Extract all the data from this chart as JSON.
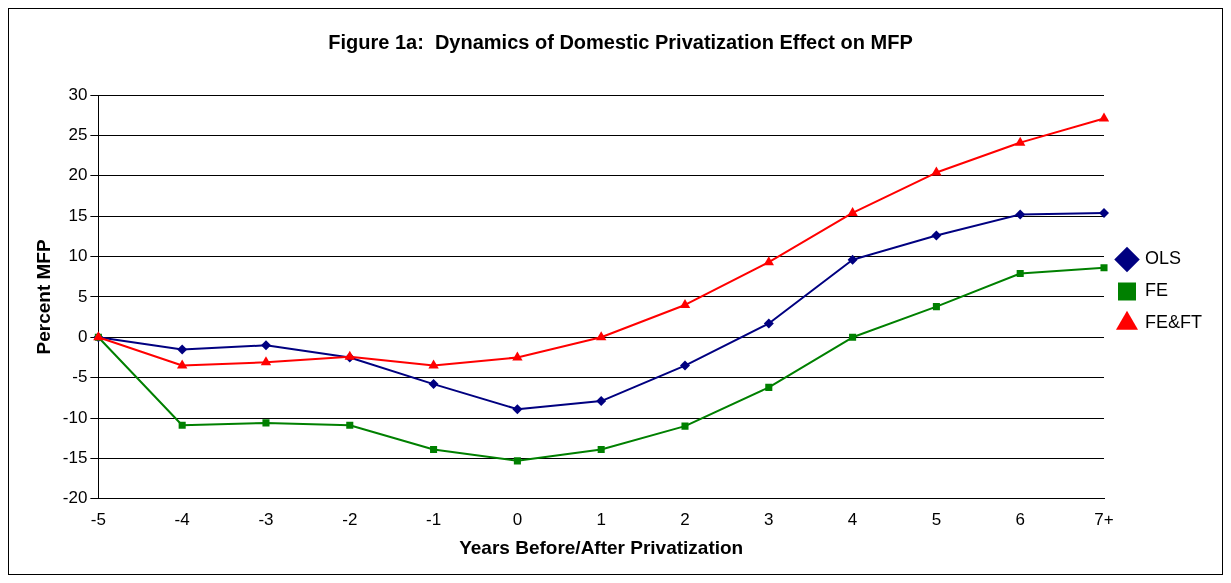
{
  "chart_data": {
    "type": "line",
    "title": "Figure 1a:  Dynamics of Domestic Privatization Effect on MFP",
    "xlabel": "Years Before/After Privatization",
    "ylabel": "Percent MFP",
    "categories": [
      "-5",
      "-4",
      "-3",
      "-2",
      "-1",
      "0",
      "1",
      "2",
      "3",
      "4",
      "5",
      "6",
      "7+"
    ],
    "series": [
      {
        "name": "OLS",
        "color": "#000080",
        "marker": "diamond",
        "values": [
          0,
          -1.5,
          -1,
          -2.5,
          -5.8,
          -8.9,
          -7.9,
          -3.5,
          1.7,
          9.6,
          12.6,
          15.2,
          15.4
        ]
      },
      {
        "name": "FE",
        "color": "#008000",
        "marker": "square",
        "values": [
          0,
          -10.9,
          -10.6,
          -10.9,
          -13.9,
          -15.3,
          -13.9,
          -11,
          -6.2,
          0,
          3.8,
          7.9,
          8.6
        ]
      },
      {
        "name": "FE&FT",
        "color": "#ff0000",
        "marker": "triangle",
        "values": [
          0,
          -3.5,
          -3.1,
          -2.4,
          -3.5,
          -2.5,
          0,
          4,
          9.3,
          15.4,
          20.4,
          24.1,
          27.1
        ]
      }
    ],
    "ylim": [
      -20,
      30
    ],
    "yticks": [
      -20,
      -15,
      -10,
      -5,
      0,
      5,
      10,
      15,
      20,
      25,
      30
    ],
    "grid": "y",
    "legend": "right",
    "line_style": "solid"
  }
}
